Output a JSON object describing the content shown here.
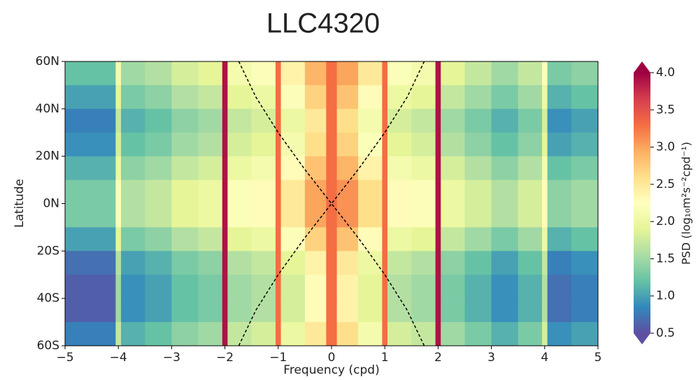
{
  "chart_data": {
    "type": "heatmap",
    "title": "LLC4320",
    "xlabel": "Frequency (cpd)",
    "ylabel": "Latitude",
    "colorbar_label": "PSD (log₁₀m²s⁻²cpd⁻¹)",
    "colormap": "Spectral_r",
    "clim": [
      0.5,
      4.0
    ],
    "xlim": [
      -5,
      5
    ],
    "ylim": [
      -60,
      60
    ],
    "xticks": [
      {
        "value": -5,
        "label": "−5"
      },
      {
        "value": -4,
        "label": "−4"
      },
      {
        "value": -3,
        "label": "−3"
      },
      {
        "value": -2,
        "label": "−2"
      },
      {
        "value": -1,
        "label": "−1"
      },
      0,
      1,
      2,
      3,
      4,
      5
    ],
    "yticks": [
      {
        "value": 60,
        "label": "60N"
      },
      {
        "value": 40,
        "label": "40N"
      },
      {
        "value": 20,
        "label": "20N"
      },
      {
        "value": 0,
        "label": "0N"
      },
      {
        "value": -20,
        "label": "20S"
      },
      {
        "value": -40,
        "label": "40S"
      },
      {
        "value": -60,
        "label": "60S"
      }
    ],
    "cticks": [
      0.5,
      {
        "value": 1,
        "label": "1.0"
      },
      1.5,
      {
        "value": 2,
        "label": "2.0"
      },
      2.5,
      {
        "value": 3,
        "label": "3.0"
      },
      3.5,
      {
        "value": 4,
        "label": "4.0"
      }
    ],
    "x_edges": [
      -5,
      -4.5,
      -4.05,
      -3.95,
      -3.5,
      -3,
      -2.5,
      -2.05,
      -1.95,
      -1.5,
      -1.05,
      -0.95,
      -0.5,
      -0.1,
      0.1,
      0.5,
      0.95,
      1.05,
      1.5,
      1.95,
      2.05,
      2.5,
      3,
      3.5,
      3.95,
      4.05,
      4.5,
      5
    ],
    "y_edges": [
      60,
      50,
      40,
      30,
      20,
      10,
      0,
      -10,
      -20,
      -30,
      -40,
      -50,
      -60
    ],
    "z": [
      [
        1.2,
        1.2,
        2.1,
        1.5,
        1.6,
        1.8,
        1.9,
        3.9,
        2.1,
        2.2,
        3.3,
        2.4,
        2.9,
        3.3,
        3.0,
        2.5,
        3.3,
        2.2,
        2.1,
        3.9,
        1.9,
        1.7,
        1.5,
        1.7,
        2.2,
        1.3,
        1.4
      ],
      [
        1.0,
        1.0,
        1.9,
        1.3,
        1.4,
        1.6,
        1.7,
        3.9,
        1.9,
        2.0,
        3.3,
        2.2,
        2.7,
        3.3,
        2.8,
        2.3,
        3.3,
        2.0,
        1.9,
        3.9,
        1.7,
        1.5,
        1.3,
        1.5,
        2.0,
        1.1,
        1.2
      ],
      [
        0.8,
        0.8,
        1.7,
        1.1,
        1.2,
        1.4,
        1.5,
        3.9,
        1.7,
        1.8,
        3.3,
        2.0,
        2.5,
        3.3,
        2.6,
        2.1,
        3.3,
        1.8,
        1.7,
        3.9,
        1.5,
        1.3,
        1.1,
        1.3,
        1.8,
        0.9,
        1.0
      ],
      [
        0.9,
        0.9,
        1.8,
        1.2,
        1.3,
        1.5,
        1.6,
        3.9,
        1.8,
        1.9,
        3.3,
        2.1,
        2.6,
        3.3,
        2.7,
        2.2,
        3.3,
        1.9,
        1.8,
        3.9,
        1.6,
        1.4,
        1.2,
        1.4,
        1.9,
        1.0,
        1.1
      ],
      [
        1.1,
        1.1,
        2.0,
        1.4,
        1.5,
        1.7,
        1.8,
        3.9,
        2.0,
        2.1,
        3.3,
        2.3,
        2.8,
        3.3,
        2.9,
        2.4,
        3.3,
        2.1,
        2.0,
        3.9,
        1.8,
        1.6,
        1.4,
        1.6,
        2.1,
        1.2,
        1.3
      ],
      [
        1.3,
        1.3,
        2.2,
        1.6,
        1.7,
        1.9,
        2.0,
        3.9,
        2.2,
        2.3,
        3.3,
        2.5,
        3.0,
        3.3,
        3.1,
        2.6,
        3.3,
        2.3,
        2.2,
        3.9,
        2.0,
        1.8,
        1.6,
        1.8,
        2.3,
        1.4,
        1.5
      ],
      [
        1.3,
        1.3,
        2.2,
        1.6,
        1.7,
        1.9,
        2.0,
        3.9,
        2.2,
        2.3,
        3.3,
        2.5,
        3.0,
        3.3,
        3.1,
        2.6,
        3.3,
        2.3,
        2.2,
        3.9,
        2.0,
        1.8,
        1.6,
        1.8,
        2.3,
        1.4,
        1.5
      ],
      [
        1.0,
        1.0,
        1.9,
        1.3,
        1.4,
        1.6,
        1.7,
        3.9,
        1.9,
        2.0,
        3.3,
        2.2,
        2.7,
        3.3,
        2.8,
        2.3,
        3.3,
        2.0,
        1.9,
        3.9,
        1.7,
        1.5,
        1.3,
        1.5,
        2.0,
        1.1,
        1.2
      ],
      [
        0.7,
        0.7,
        1.6,
        1.0,
        1.1,
        1.3,
        1.4,
        3.9,
        1.6,
        1.7,
        3.3,
        1.9,
        2.4,
        3.3,
        2.5,
        2.0,
        3.3,
        1.7,
        1.6,
        3.9,
        1.4,
        1.2,
        1.0,
        1.2,
        1.7,
        0.8,
        0.9
      ],
      [
        0.6,
        0.6,
        1.5,
        0.9,
        1.0,
        1.2,
        1.3,
        3.9,
        1.5,
        1.6,
        3.3,
        1.8,
        2.3,
        3.3,
        2.4,
        1.9,
        3.3,
        1.6,
        1.5,
        3.9,
        1.3,
        1.1,
        0.9,
        1.1,
        1.6,
        0.7,
        0.8
      ],
      [
        0.6,
        0.6,
        1.5,
        0.9,
        1.0,
        1.2,
        1.3,
        3.9,
        1.5,
        1.6,
        3.3,
        1.8,
        2.3,
        3.3,
        2.4,
        1.9,
        3.3,
        1.6,
        1.5,
        3.9,
        1.3,
        1.1,
        0.9,
        1.1,
        1.6,
        0.7,
        0.8
      ],
      [
        0.8,
        0.8,
        1.7,
        1.1,
        1.2,
        1.4,
        1.5,
        3.9,
        1.7,
        1.8,
        3.3,
        2.0,
        2.5,
        3.3,
        2.6,
        2.1,
        3.3,
        1.8,
        1.7,
        3.9,
        1.5,
        1.3,
        1.1,
        1.3,
        1.8,
        0.9,
        1.0
      ]
    ],
    "lines": [
      {
        "color": "#000000",
        "x": [
          -1.74,
          -1.42,
          -1.0,
          -0.52,
          0,
          0.52,
          1.0,
          1.42,
          1.74
        ],
        "y": [
          60,
          45,
          30,
          15,
          0,
          -15,
          -30,
          -45,
          -60
        ]
      },
      {
        "color": "#000000",
        "x": [
          1.74,
          1.42,
          1.0,
          0.52,
          0,
          -0.52,
          -1.0,
          -1.42,
          -1.74
        ],
        "y": [
          60,
          45,
          30,
          15,
          0,
          -15,
          -30,
          -45,
          -60
        ]
      }
    ]
  }
}
